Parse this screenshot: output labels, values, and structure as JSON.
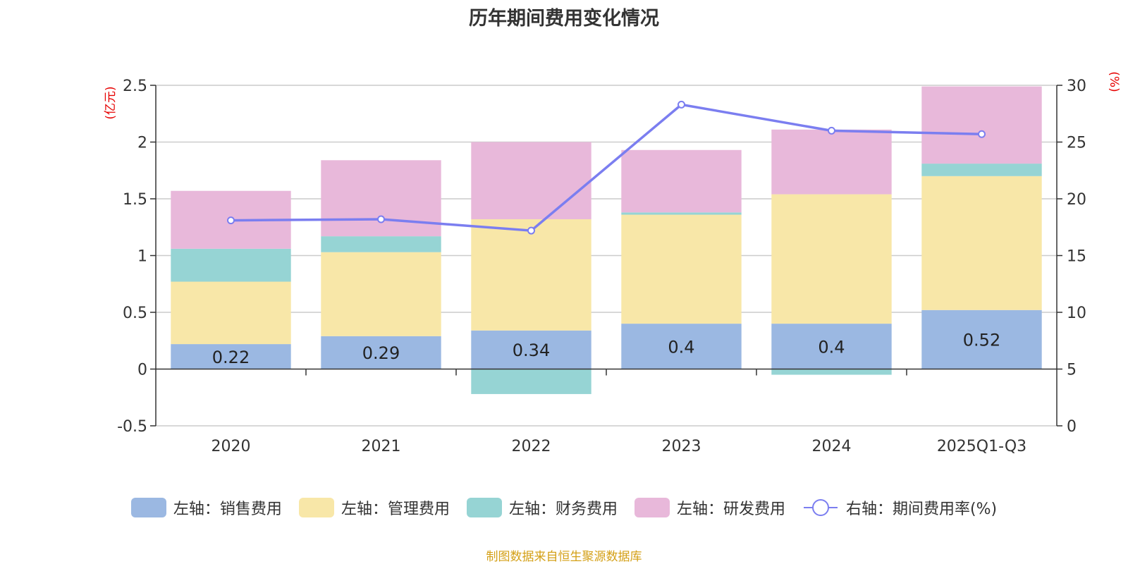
{
  "chart_data": {
    "type": "bar",
    "title": "历年期间费用变化情况",
    "categories": [
      "2020",
      "2021",
      "2022",
      "2023",
      "2024",
      "2025Q1-Q3"
    ],
    "left_axis": {
      "unit_label": "(亿元)",
      "ylim": [
        -0.5,
        2.5
      ],
      "ticks": [
        "-0.5",
        "0",
        "0.5",
        "1",
        "1.5",
        "2",
        "2.5"
      ]
    },
    "right_axis": {
      "unit_label": "(%)",
      "ylim": [
        0,
        30
      ],
      "ticks": [
        "0",
        "5",
        "10",
        "15",
        "20",
        "25",
        "30"
      ]
    },
    "series": [
      {
        "name": "左轴：销售费用",
        "type": "bar",
        "color": "#9bb8e2",
        "values": [
          0.22,
          0.29,
          0.34,
          0.4,
          0.4,
          0.52
        ],
        "labels": [
          "0.22",
          "0.29",
          "0.34",
          "0.4",
          "0.4",
          "0.52"
        ]
      },
      {
        "name": "左轴：管理费用",
        "type": "bar",
        "color": "#f8e7a8",
        "values": [
          0.55,
          0.74,
          0.98,
          0.96,
          1.14,
          1.18
        ]
      },
      {
        "name": "左轴：财务费用",
        "type": "bar",
        "color": "#96d4d4",
        "values": [
          0.29,
          0.14,
          -0.22,
          0.02,
          -0.05,
          0.11
        ]
      },
      {
        "name": "左轴：研发费用",
        "type": "bar",
        "color": "#e8b8da",
        "values": [
          0.51,
          0.67,
          0.68,
          0.55,
          0.57,
          0.68
        ]
      },
      {
        "name": "右轴：期间费用率(%)",
        "type": "line",
        "color": "#7b7ef0",
        "axis": "right",
        "values": [
          18.1,
          18.2,
          17.2,
          28.3,
          26.0,
          25.7
        ]
      }
    ],
    "grid": true,
    "legend_position": "bottom"
  },
  "footer": "制图数据来自恒生聚源数据库"
}
